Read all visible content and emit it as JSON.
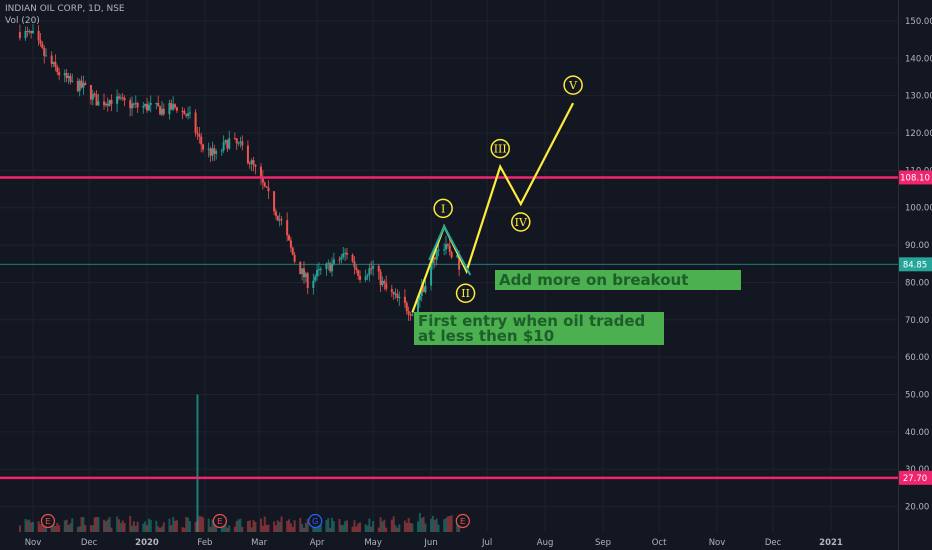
{
  "header": {
    "symbol_line": "INDIAN OIL CORP, 1D, NSE",
    "indicator_line": "Vol (20)"
  },
  "colors": {
    "background": "#131722",
    "grid": "#1e222d",
    "axis_text": "#b2b5be",
    "up": "#26a69a",
    "down": "#ef5350",
    "hline": "#f0256e",
    "wave": "#ffeb3b",
    "note_bg": "#4caf50",
    "note_text": "#1e5e2a",
    "price_line": "#26a69a"
  },
  "annotations": {
    "first_entry": "First entry when oil traded at less then $10",
    "add_more": "Add more on breakout",
    "wave_labels": [
      "I",
      "II",
      "III",
      "IV",
      "V"
    ]
  },
  "chart_data": {
    "type": "candlestick",
    "x_labels": [
      "Nov",
      "Dec",
      "2020",
      "Feb",
      "Mar",
      "Apr",
      "May",
      "Jun",
      "Jul",
      "Aug",
      "Sep",
      "Oct",
      "Nov",
      "Dec",
      "2021"
    ],
    "y_ticks": [
      150,
      140,
      130,
      120,
      110,
      100,
      90,
      80,
      70,
      60,
      50,
      40,
      30,
      20
    ],
    "y_tick_labels": [
      "150.00",
      "140.00",
      "130.00",
      "120.00",
      "110.00",
      "100.00",
      "90.00",
      "80.00",
      "70.00",
      "60.00",
      "50.00",
      "40.00",
      "30.00",
      "20.00"
    ],
    "ylim": [
      13.2,
      155.6
    ],
    "price_path": [
      [
        "2019-10-25",
        147
      ],
      [
        "2019-11-01",
        146
      ],
      [
        "2019-11-08",
        140
      ],
      [
        "2019-11-15",
        136
      ],
      [
        "2019-11-22",
        133
      ],
      [
        "2019-11-29",
        132
      ],
      [
        "2019-12-06",
        128
      ],
      [
        "2019-12-13",
        129
      ],
      [
        "2019-12-20",
        128
      ],
      [
        "2019-12-27",
        127
      ],
      [
        "2020-01-03",
        127
      ],
      [
        "2020-01-10",
        126
      ],
      [
        "2020-01-17",
        127
      ],
      [
        "2020-01-24",
        124
      ],
      [
        "2020-01-31",
        116
      ],
      [
        "2020-02-07",
        114
      ],
      [
        "2020-02-14",
        118
      ],
      [
        "2020-02-21",
        116
      ],
      [
        "2020-02-28",
        110
      ],
      [
        "2020-03-06",
        103
      ],
      [
        "2020-03-13",
        96
      ],
      [
        "2020-03-20",
        86
      ],
      [
        "2020-03-27",
        80
      ],
      [
        "2020-04-03",
        83
      ],
      [
        "2020-04-10",
        85
      ],
      [
        "2020-04-17",
        88
      ],
      [
        "2020-04-24",
        82
      ],
      [
        "2020-05-01",
        84
      ],
      [
        "2020-05-08",
        78
      ],
      [
        "2020-05-15",
        75
      ],
      [
        "2020-05-22",
        72
      ],
      [
        "2020-05-29",
        80
      ],
      [
        "2020-06-05",
        90
      ],
      [
        "2020-06-12",
        88
      ],
      [
        "2020-06-16",
        85
      ]
    ],
    "volume_spike": {
      "date": "2020-01-28",
      "volume_pct": 1.0
    },
    "horizontal_lines": [
      {
        "value": 108.1,
        "label": "108.10"
      },
      {
        "value": 27.7,
        "label": "27.70"
      }
    ],
    "last_price": {
      "value": 84.85,
      "label": "84.85"
    },
    "elliott_wave": [
      {
        "date": "2020-05-22",
        "price": 72,
        "label": ""
      },
      {
        "date": "2020-06-08",
        "price": 95,
        "label": "I"
      },
      {
        "date": "2020-06-20",
        "price": 83,
        "label": "II"
      },
      {
        "date": "2020-07-08",
        "price": 111,
        "label": "III"
      },
      {
        "date": "2020-07-19",
        "price": 101,
        "label": "IV"
      },
      {
        "date": "2020-08-16",
        "price": 128,
        "label": "V"
      }
    ],
    "event_markers": [
      {
        "date": "2019-11-09",
        "label": "E"
      },
      {
        "date": "2020-02-09",
        "label": "E"
      },
      {
        "date": "2020-03-31",
        "label": "G"
      },
      {
        "date": "2020-06-18",
        "label": "E"
      }
    ]
  }
}
